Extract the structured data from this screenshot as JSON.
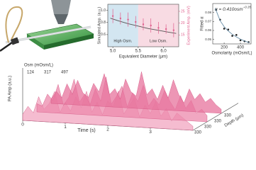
{
  "chart_data": [
    {
      "type": "line",
      "xlabel": "Equivalent Diameter (μm)",
      "ylabel": "Simulated Amp. (a.u.)",
      "y2label": "Experiment Amp. (mV)",
      "xlim": [
        4.9,
        6.3
      ],
      "xticks": [
        {
          "value": 5,
          "label": "5.0"
        },
        5.5,
        {
          "value": 6,
          "label": "6.0"
        }
      ],
      "ylim": [
        0.4,
        1.1
      ],
      "yticks": [
        0.6,
        0.8,
        {
          "value": 1,
          "label": "1.0"
        }
      ],
      "y2lim": [
        10,
        28
      ],
      "y2ticks": [
        15,
        20,
        25
      ],
      "regions": [
        {
          "label": "High Osm.",
          "from": 4.9,
          "to": 5.5,
          "color": "#d3e6f1"
        },
        {
          "label": "Low Osm.",
          "from": 5.5,
          "to": 6.3,
          "color": "#f8dbe3"
        }
      ],
      "series": [
        {
          "color": "#555555",
          "x": [
            4.95,
            5.1,
            5.3,
            5.5,
            5.7,
            5.9,
            6.1,
            6.25
          ],
          "values": [
            0.87,
            0.83,
            0.78,
            0.74,
            0.7,
            0.67,
            0.64,
            0.62
          ]
        },
        {
          "color": "#e0608e",
          "axis": "y2",
          "x": [
            5.0,
            5.15,
            5.3,
            5.45,
            5.6,
            5.75,
            5.9,
            6.05,
            6.2
          ],
          "values": [
            23,
            22,
            21.5,
            20.5,
            19.5,
            19,
            18,
            17.5,
            17
          ],
          "errors": [
            3,
            2.5,
            3,
            2.5,
            2.5,
            3,
            2.5,
            2,
            3
          ]
        }
      ]
    },
    {
      "type": "scatter",
      "xlabel": "Osmolarity (mOsm/L)",
      "ylabel": "Fitted α",
      "annotation": {
        "base": "α = 0.410osm",
        "exponent": "−0.35"
      },
      "xlim": [
        60,
        530
      ],
      "xticks": [
        200,
        400
      ],
      "ylim": [
        0.045,
        0.09
      ],
      "yticks": [
        0.05,
        0.06,
        0.07,
        0.08
      ],
      "series": [
        {
          "color": "#222222",
          "x": [
            100,
            150,
            200,
            250,
            300,
            350,
            400,
            450,
            500
          ],
          "values": [
            0.083,
            0.072,
            0.062,
            0.061,
            0.054,
            0.055,
            0.049,
            0.048,
            0.047
          ]
        },
        {
          "color": "#6a8fa8",
          "x": [
            90,
            150,
            200,
            250,
            300,
            350,
            400,
            450,
            510
          ],
          "values": [
            0.0849,
            0.071,
            0.0642,
            0.0594,
            0.0557,
            0.0528,
            0.0503,
            0.0483,
            0.0462
          ]
        }
      ]
    },
    {
      "type": "waterfall",
      "zlabel": "PA Amp (a.u.)",
      "xlabel": "Time (s)",
      "ylabel": "Depth (μm)",
      "osm_label": "Osm (mOsm/L)",
      "xlim": [
        0,
        4
      ],
      "xticks": [
        0,
        1,
        2,
        3
      ],
      "zlim": [
        0,
        1
      ],
      "depth_ticks": [
        330,
        330,
        330,
        330
      ],
      "x": [
        0,
        0.125,
        0.25,
        0.375,
        0.5,
        0.625,
        0.75,
        0.875,
        1,
        1.125,
        1.25,
        1.375,
        1.5,
        1.625,
        1.75,
        1.875,
        2,
        2.125,
        2.25,
        2.375,
        2.5,
        2.625,
        2.75,
        2.875,
        3,
        3.125,
        3.25,
        3.375,
        3.5,
        3.625,
        3.75,
        3.875,
        4
      ],
      "series": [
        {
          "name": "124",
          "color": "#e7739c",
          "values": [
            0.1,
            0.3,
            0.15,
            0.5,
            0.25,
            0.6,
            0.3,
            0.2,
            0.55,
            0.35,
            0.8,
            0.3,
            0.45,
            0.2,
            0.7,
            0.4,
            0.3,
            0.9,
            0.35,
            0.5,
            0.25,
            0.6,
            0.3,
            0.75,
            0.4,
            0.2,
            0.55,
            0.3,
            0.45,
            0.25,
            0.35,
            0.2,
            0.1
          ]
        },
        {
          "name": "317",
          "color": "#ec8aac",
          "values": [
            0.2,
            0.15,
            0.45,
            0.3,
            0.7,
            0.2,
            0.4,
            0.85,
            0.3,
            0.5,
            0.25,
            0.65,
            0.35,
            0.95,
            0.3,
            0.5,
            0.75,
            0.25,
            0.6,
            0.4,
            0.8,
            0.3,
            0.5,
            0.35,
            0.7,
            0.45,
            0.25,
            0.6,
            0.3,
            0.5,
            0.2,
            0.3,
            0.15
          ]
        },
        {
          "name": "497",
          "color": "#f2a6c0",
          "values": [
            0.15,
            0.35,
            0.2,
            0.6,
            0.3,
            0.45,
            0.75,
            0.25,
            0.5,
            0.3,
            0.65,
            0.4,
            0.8,
            0.3,
            0.55,
            0.25,
            0.6,
            0.45,
            0.85,
            0.3,
            0.5,
            0.7,
            0.25,
            0.55,
            0.35,
            0.65,
            0.3,
            0.5,
            0.2,
            0.4,
            0.3,
            0.2,
            0.1
          ]
        }
      ]
    }
  ]
}
